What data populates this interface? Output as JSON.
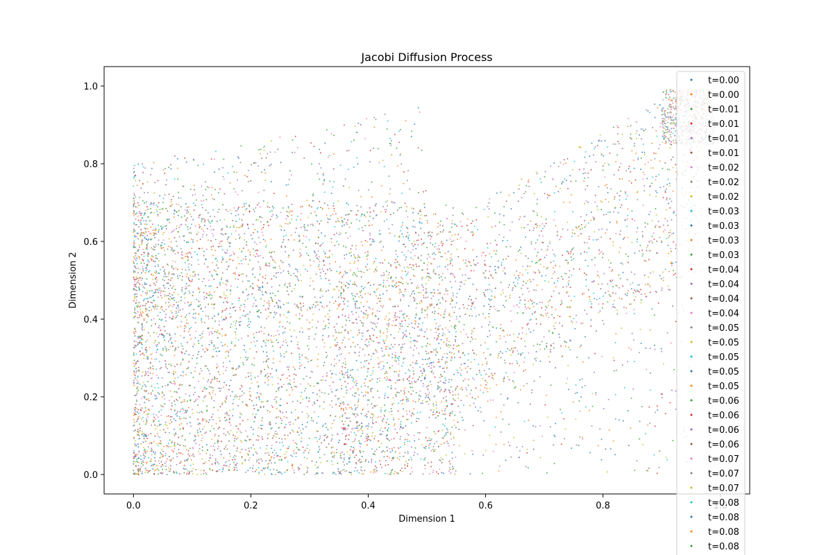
{
  "chart_data": {
    "type": "scatter",
    "title": "Jacobi Diffusion Process",
    "xlabel": "Dimension 1",
    "ylabel": "Dimension 2",
    "xlim": [
      -0.05,
      1.05
    ],
    "ylim": [
      -0.05,
      1.05
    ],
    "x_ticks": [
      "0.0",
      "0.2",
      "0.4",
      "0.6",
      "0.8",
      "1.0"
    ],
    "y_ticks": [
      "0.0",
      "0.2",
      "0.4",
      "0.6",
      "0.8",
      "1.0"
    ],
    "legend_position": "upper-right",
    "series": [
      {
        "name": "t=0.00",
        "color": "#1f77b4"
      },
      {
        "name": "t=0.00",
        "color": "#ff7f0e"
      },
      {
        "name": "t=0.01",
        "color": "#2ca02c"
      },
      {
        "name": "t=0.01",
        "color": "#d62728"
      },
      {
        "name": "t=0.01",
        "color": "#9467bd"
      },
      {
        "name": "t=0.01",
        "color": "#8c564b"
      },
      {
        "name": "t=0.02",
        "color": "#e377c2"
      },
      {
        "name": "t=0.02",
        "color": "#7f7f7f"
      },
      {
        "name": "t=0.02",
        "color": "#bcbd22"
      },
      {
        "name": "t=0.03",
        "color": "#17becf"
      },
      {
        "name": "t=0.03",
        "color": "#1f77b4"
      },
      {
        "name": "t=0.03",
        "color": "#ff7f0e"
      },
      {
        "name": "t=0.03",
        "color": "#2ca02c"
      },
      {
        "name": "t=0.04",
        "color": "#d62728"
      },
      {
        "name": "t=0.04",
        "color": "#9467bd"
      },
      {
        "name": "t=0.04",
        "color": "#8c564b"
      },
      {
        "name": "t=0.04",
        "color": "#e377c2"
      },
      {
        "name": "t=0.05",
        "color": "#7f7f7f"
      },
      {
        "name": "t=0.05",
        "color": "#bcbd22"
      },
      {
        "name": "t=0.05",
        "color": "#17becf"
      },
      {
        "name": "t=0.05",
        "color": "#1f77b4"
      },
      {
        "name": "t=0.05",
        "color": "#ff7f0e"
      },
      {
        "name": "t=0.06",
        "color": "#2ca02c"
      },
      {
        "name": "t=0.06",
        "color": "#d62728"
      },
      {
        "name": "t=0.06",
        "color": "#9467bd"
      },
      {
        "name": "t=0.06",
        "color": "#8c564b"
      },
      {
        "name": "t=0.07",
        "color": "#e377c2"
      },
      {
        "name": "t=0.07",
        "color": "#7f7f7f"
      },
      {
        "name": "t=0.07",
        "color": "#bcbd22"
      },
      {
        "name": "t=0.08",
        "color": "#17becf"
      },
      {
        "name": "t=0.08",
        "color": "#1f77b4"
      },
      {
        "name": "t=0.08",
        "color": "#ff7f0e"
      },
      {
        "name": "t=0.08",
        "color": "#2ca02c"
      }
    ]
  }
}
